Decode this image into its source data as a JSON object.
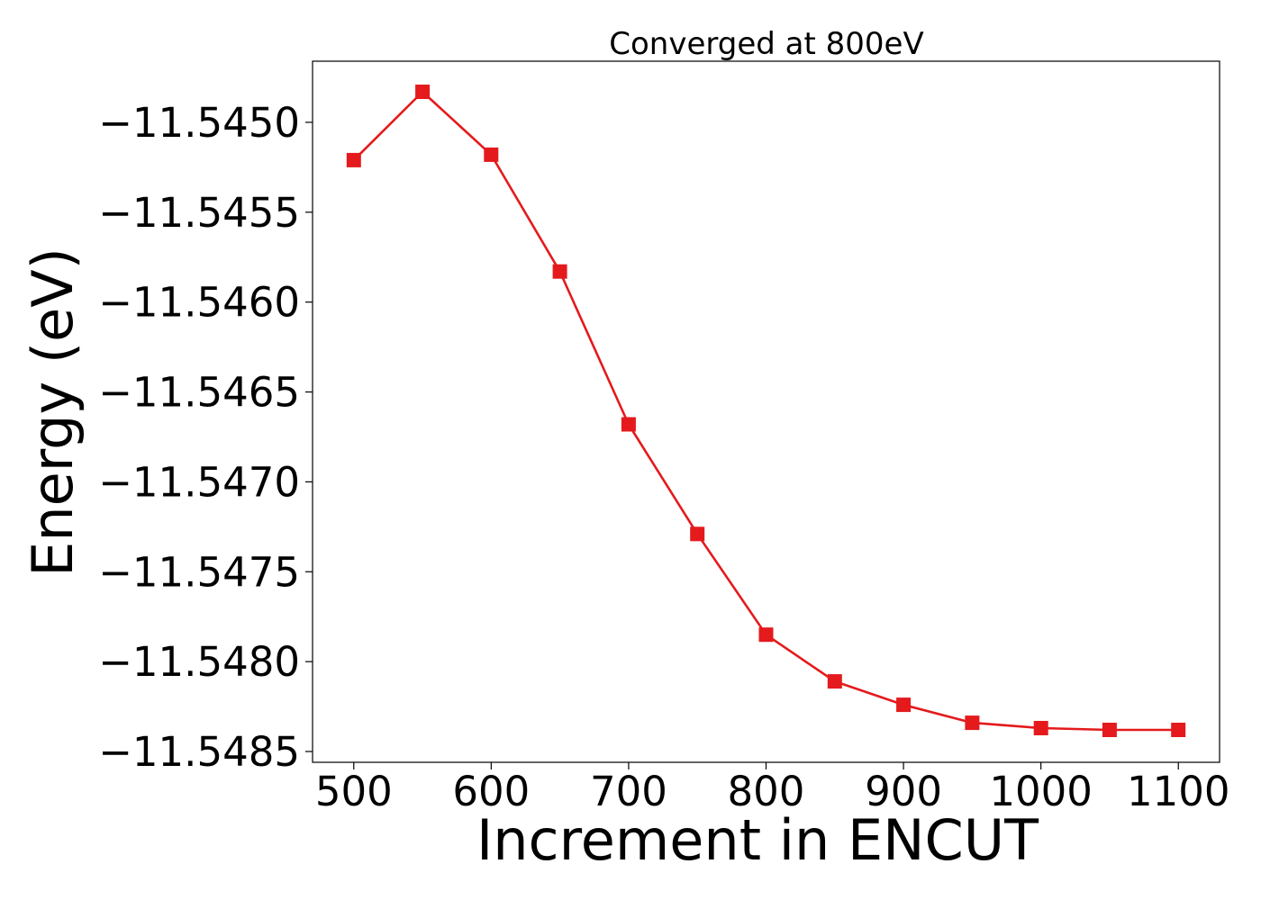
{
  "chart_data": {
    "type": "line",
    "title": "Converged at 800eV",
    "xlabel": "Increment in ENCUT",
    "ylabel": "Energy (eV)",
    "x": [
      500,
      550,
      600,
      650,
      700,
      750,
      800,
      850,
      900,
      950,
      1000,
      1050,
      1100
    ],
    "series": [
      {
        "name": "",
        "values": [
          -11.54521,
          -11.54483,
          -11.54518,
          -11.54583,
          -11.54668,
          -11.54729,
          -11.54785,
          -11.54811,
          -11.54824,
          -11.54834,
          -11.54837,
          -11.54838,
          -11.54838
        ],
        "color": "#e41a1c",
        "marker": "square"
      }
    ],
    "xticks": [
      500,
      600,
      700,
      800,
      900,
      1000,
      1100
    ],
    "xtick_labels": [
      "500",
      "600",
      "700",
      "800",
      "900",
      "1000",
      "1100"
    ],
    "yticks": [
      -11.545,
      -11.5455,
      -11.546,
      -11.5465,
      -11.547,
      -11.5475,
      -11.548,
      -11.5485
    ],
    "ytick_labels": [
      "−11.5450",
      "−11.5455",
      "−11.5460",
      "−11.5465",
      "−11.5470",
      "−11.5475",
      "−11.5480",
      "−11.5485"
    ],
    "xlim": [
      470,
      1130
    ],
    "ylim": [
      -11.54856,
      -11.54466
    ],
    "grid": false,
    "legend": "none"
  }
}
